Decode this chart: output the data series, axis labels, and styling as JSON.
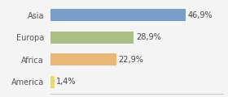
{
  "categories": [
    "Asia",
    "Europa",
    "Africa",
    "America"
  ],
  "values": [
    46.9,
    28.9,
    22.9,
    1.4
  ],
  "labels": [
    "46,9%",
    "28,9%",
    "22,9%",
    "1,4%"
  ],
  "bar_colors": [
    "#7a9ec7",
    "#aabf85",
    "#e8b87a",
    "#e8d87a"
  ],
  "background_color": "#f5f5f5",
  "xlim": [
    0,
    60
  ],
  "bar_height": 0.55,
  "label_fontsize": 7.0,
  "tick_fontsize": 7.0
}
